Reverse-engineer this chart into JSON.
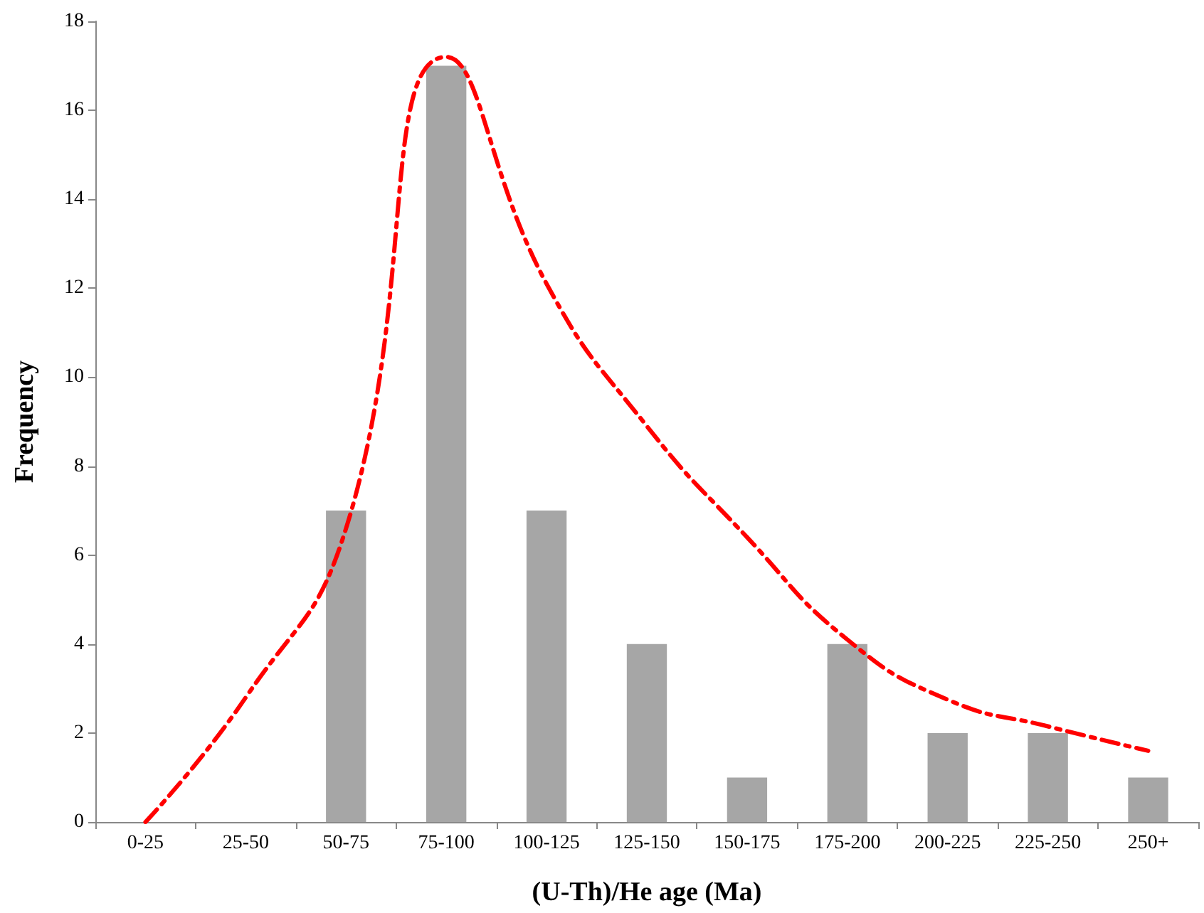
{
  "chart_data": {
    "type": "bar",
    "xlabel": "(U-Th)/He age (Ma)",
    "ylabel": "Frequency",
    "categories": [
      "0-25",
      "25-50",
      "50-75",
      "75-100",
      "100-125",
      "125-150",
      "150-175",
      "175-200",
      "200-225",
      "225-250",
      "250+"
    ],
    "series": [
      {
        "color": "#a6a6a6",
        "values": [
          0,
          0,
          7,
          17,
          7,
          4,
          1,
          4,
          2,
          2,
          1
        ]
      },
      {
        "type": "line",
        "color": "#ff0000",
        "line_style": "dashed",
        "marker": "none",
        "values": [
          0,
          2.8,
          6.6,
          17.2,
          12.1,
          8.9,
          6.4,
          4.1,
          2.75,
          2.15,
          1.6
        ]
      }
    ],
    "ylim": [
      0,
      18
    ],
    "yticks": [
      0,
      2,
      4,
      6,
      8,
      10,
      12,
      14,
      16,
      18
    ],
    "grid": false
  }
}
